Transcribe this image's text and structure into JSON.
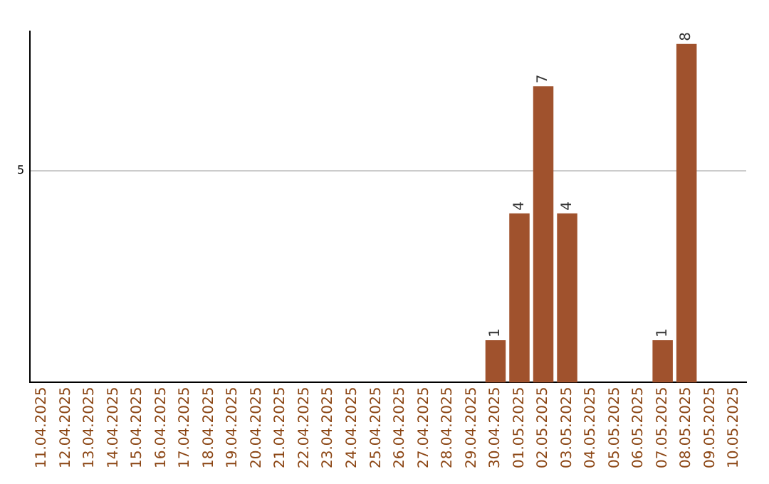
{
  "chart_data": {
    "type": "bar",
    "categories": [
      "11.04.2025",
      "12.04.2025",
      "13.04.2025",
      "14.04.2025",
      "15.04.2025",
      "16.04.2025",
      "17.04.2025",
      "18.04.2025",
      "19.04.2025",
      "20.04.2025",
      "21.04.2025",
      "22.04.2025",
      "23.04.2025",
      "24.04.2025",
      "25.04.2025",
      "26.04.2025",
      "27.04.2025",
      "28.04.2025",
      "29.04.2025",
      "30.04.2025",
      "01.05.2025",
      "02.05.2025",
      "03.05.2025",
      "04.05.2025",
      "05.05.2025",
      "06.05.2025",
      "07.05.2025",
      "08.05.2025",
      "09.05.2025",
      "10.05.2025"
    ],
    "values": [
      null,
      null,
      null,
      null,
      null,
      null,
      null,
      null,
      null,
      null,
      null,
      null,
      null,
      null,
      null,
      null,
      null,
      null,
      null,
      1,
      4,
      7,
      4,
      null,
      null,
      null,
      1,
      8,
      null,
      null
    ],
    "color": "#a0522d",
    "ylim": [
      0,
      8.3
    ],
    "yticks": [
      5
    ],
    "grid": "y",
    "data_labels": true,
    "legend": false
  }
}
